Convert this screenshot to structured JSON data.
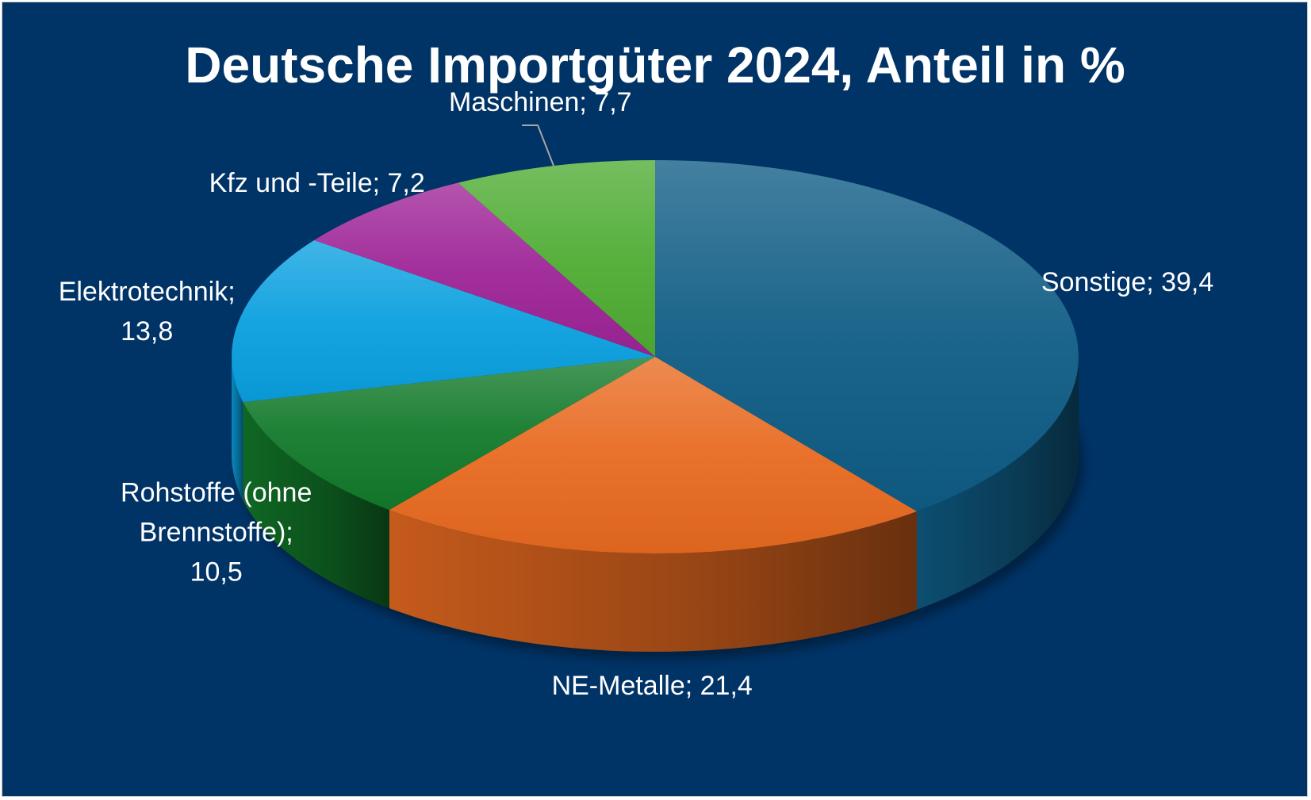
{
  "chart_data": {
    "type": "pie",
    "title": "Deutsche Importgüter 2024, Anteil in %",
    "categories": [
      "Sonstige",
      "NE-Metalle",
      "Rohstoffe (ohne Brennstoffe)",
      "Elektrotechnik",
      "Kfz und -Teile",
      "Maschinen"
    ],
    "values": [
      39.4,
      21.4,
      10.5,
      13.8,
      7.2,
      7.7
    ],
    "value_labels": [
      "39,4",
      "21,4",
      "10,5",
      "13,8",
      "7,2",
      "7,7"
    ],
    "data_labels": [
      [
        "Sonstige; 39,4"
      ],
      [
        "NE-Metalle; 21,4"
      ],
      [
        "Rohstoffe (ohne",
        "Brennstoffe);",
        "10,5"
      ],
      [
        "Elektrotechnik;",
        "13,8"
      ],
      [
        "Kfz und -Teile; 7,2"
      ],
      [
        "Maschinen; 7,7"
      ]
    ],
    "colors": [
      "#0f5c85",
      "#e86a20",
      "#127a2a",
      "#0aa0df",
      "#9e2497",
      "#4fac33"
    ],
    "style": "3d-pie",
    "legend": "none",
    "background": "#003366"
  }
}
